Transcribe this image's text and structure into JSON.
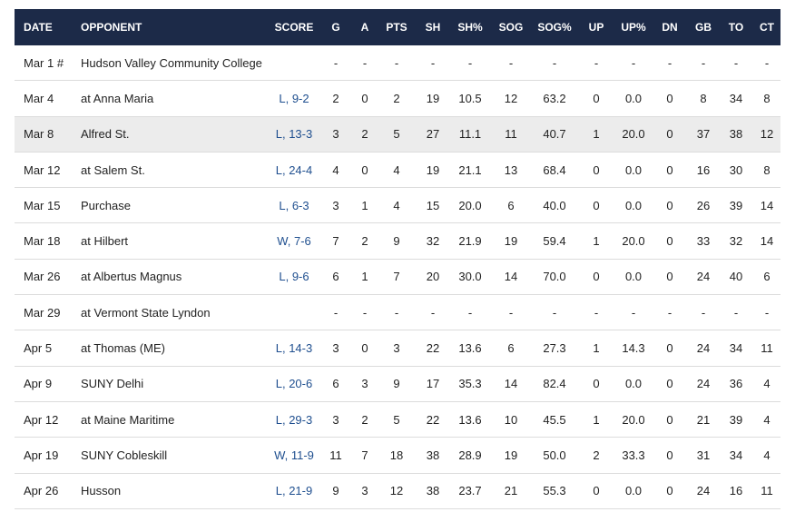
{
  "table": {
    "header": [
      "DATE",
      "OPPONENT",
      "SCORE",
      "G",
      "A",
      "PTS",
      "SH",
      "SH%",
      "SOG",
      "SOG%",
      "UP",
      "UP%",
      "DN",
      "GB",
      "TO",
      "CT"
    ],
    "rows": [
      [
        "Mar 1 #",
        "Hudson Valley Community College",
        null,
        "-",
        "-",
        "-",
        "-",
        "-",
        "-",
        "-",
        "-",
        "-",
        "-",
        "-",
        "-",
        "-"
      ],
      [
        "Mar 4",
        "at Anna Maria",
        "L, 9-2",
        "2",
        "0",
        "2",
        "19",
        "10.5",
        "12",
        "63.2",
        "0",
        "0.0",
        "0",
        "8",
        "34",
        "8"
      ],
      [
        "Mar 8",
        "Alfred St.",
        "L, 13-3",
        "3",
        "2",
        "5",
        "27",
        "11.1",
        "11",
        "40.7",
        "1",
        "20.0",
        "0",
        "37",
        "38",
        "12"
      ],
      [
        "Mar 12",
        "at Salem St.",
        "L, 24-4",
        "4",
        "0",
        "4",
        "19",
        "21.1",
        "13",
        "68.4",
        "0",
        "0.0",
        "0",
        "16",
        "30",
        "8"
      ],
      [
        "Mar 15",
        "Purchase",
        "L, 6-3",
        "3",
        "1",
        "4",
        "15",
        "20.0",
        "6",
        "40.0",
        "0",
        "0.0",
        "0",
        "26",
        "39",
        "14"
      ],
      [
        "Mar 18",
        "at Hilbert",
        "W, 7-6",
        "7",
        "2",
        "9",
        "32",
        "21.9",
        "19",
        "59.4",
        "1",
        "20.0",
        "0",
        "33",
        "32",
        "14"
      ],
      [
        "Mar 26",
        "at Albertus Magnus",
        "L, 9-6",
        "6",
        "1",
        "7",
        "20",
        "30.0",
        "14",
        "70.0",
        "0",
        "0.0",
        "0",
        "24",
        "40",
        "6"
      ],
      [
        "Mar 29",
        "at Vermont State Lyndon",
        null,
        "-",
        "-",
        "-",
        "-",
        "-",
        "-",
        "-",
        "-",
        "-",
        "-",
        "-",
        "-",
        "-"
      ],
      [
        "Apr 5",
        "at Thomas (ME)",
        "L, 14-3",
        "3",
        "0",
        "3",
        "22",
        "13.6",
        "6",
        "27.3",
        "1",
        "14.3",
        "0",
        "24",
        "34",
        "11"
      ],
      [
        "Apr 9",
        "SUNY Delhi",
        "L, 20-6",
        "6",
        "3",
        "9",
        "17",
        "35.3",
        "14",
        "82.4",
        "0",
        "0.0",
        "0",
        "24",
        "36",
        "4"
      ],
      [
        "Apr 12",
        "at Maine Maritime",
        "L, 29-3",
        "3",
        "2",
        "5",
        "22",
        "13.6",
        "10",
        "45.5",
        "1",
        "20.0",
        "0",
        "21",
        "39",
        "4"
      ],
      [
        "Apr 19",
        "SUNY Cobleskill",
        "W, 11-9",
        "11",
        "7",
        "18",
        "38",
        "28.9",
        "19",
        "50.0",
        "2",
        "33.3",
        "0",
        "31",
        "34",
        "4"
      ],
      [
        "Apr 26",
        "Husson",
        "L, 21-9",
        "9",
        "3",
        "12",
        "38",
        "23.7",
        "21",
        "55.3",
        "0",
        "0.0",
        "0",
        "24",
        "16",
        "11"
      ]
    ]
  }
}
